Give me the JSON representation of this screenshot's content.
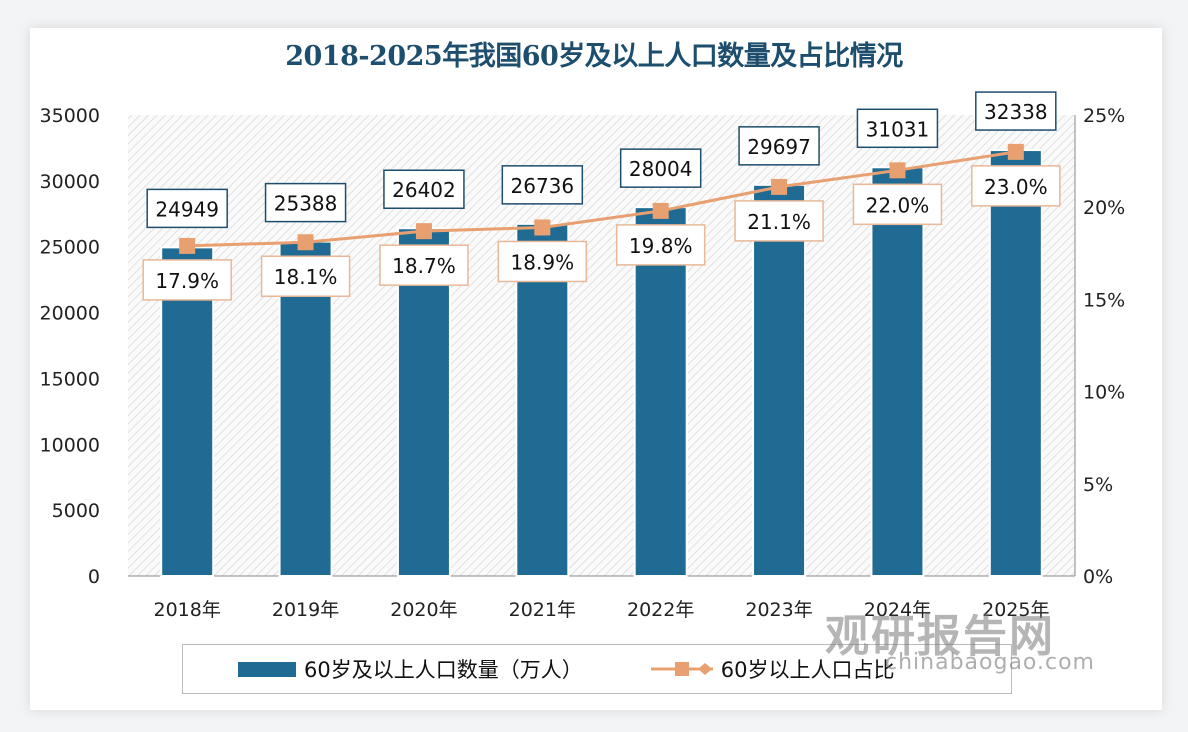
{
  "chart_data": {
    "type": "bar+line",
    "title": "2018-2025年我国60岁及以上人口数量及占比情况",
    "categories": [
      "2018年",
      "2019年",
      "2020年",
      "2021年",
      "2022年",
      "2023年",
      "2024年",
      "2025年"
    ],
    "series": [
      {
        "name": "60岁及以上人口数量（万人）",
        "type": "bar",
        "axis": "left",
        "color": "#1f6b93",
        "values": [
          24949,
          25388,
          26402,
          26736,
          28004,
          29697,
          31031,
          32338
        ]
      },
      {
        "name": "60岁以上人口占比",
        "type": "line",
        "axis": "right",
        "color": "#e8a070",
        "values": [
          17.9,
          18.1,
          18.7,
          18.9,
          19.8,
          21.1,
          22.0,
          23.0
        ],
        "labels": [
          "17.9%",
          "18.1%",
          "18.7%",
          "18.9%",
          "19.8%",
          "21.1%",
          "22.0%",
          "23.0%"
        ]
      }
    ],
    "left_axis": {
      "ylim": [
        0,
        35000
      ],
      "ticks": [
        "0",
        "5000",
        "10000",
        "15000",
        "20000",
        "25000",
        "30000",
        "35000"
      ]
    },
    "right_axis": {
      "ylim": [
        0,
        25
      ],
      "ticks": [
        "0%",
        "5%",
        "10%",
        "15%",
        "20%",
        "25%"
      ]
    },
    "legend_position": "bottom",
    "grid": false
  },
  "watermark": {
    "brand": "观研报告网",
    "url": "chinabaogao.com"
  }
}
